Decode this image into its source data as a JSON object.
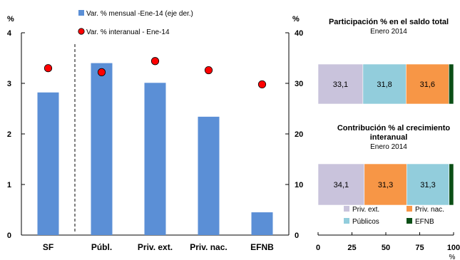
{
  "chart_data": [
    {
      "type": "bar",
      "categories": [
        "SF",
        "Públ.",
        "Priv. ext.",
        "Priv. nac.",
        "EFNB"
      ],
      "left_axis": {
        "unit": "%",
        "range": [
          0,
          4
        ],
        "ticks": [
          "0",
          "1",
          "2",
          "3",
          "4"
        ]
      },
      "right_axis": {
        "unit": "%",
        "range": [
          0,
          40
        ],
        "ticks": [
          "0",
          "10",
          "20",
          "30",
          "40"
        ]
      },
      "series": [
        {
          "name": "Var. % mensual -Ene-14 (eje der.)",
          "kind": "bar",
          "color": "#5b8fd6",
          "values": [
            2.82,
            3.4,
            3.01,
            2.34,
            0.45
          ]
        },
        {
          "name": "Var. % interanual - Ene-14",
          "kind": "marker",
          "color": "#ff0000",
          "values": [
            33.0,
            32.2,
            34.4,
            32.6,
            29.8
          ]
        }
      ],
      "separator_after_category": 0
    },
    {
      "type": "bar",
      "orientation": "horizontal-stacked",
      "title": "Participación % en el saldo total",
      "subtitle": "Enero 2014",
      "segments": [
        {
          "series": "Priv. ext.",
          "value": 33.1,
          "label": "33,1"
        },
        {
          "series": "Públicos",
          "value": 31.8,
          "label": "31,8"
        },
        {
          "series": "Priv. nac.",
          "value": 31.6,
          "label": "31,6"
        },
        {
          "series": "EFNB",
          "value": 3.5,
          "label": ""
        }
      ]
    },
    {
      "type": "bar",
      "orientation": "horizontal-stacked",
      "title": "Contribución % al crecimiento interanual",
      "title_lines": [
        "Contribución % al crecimiento",
        "interanual"
      ],
      "subtitle": "Enero 2014",
      "segments": [
        {
          "series": "Priv. ext.",
          "value": 34.1,
          "label": "34,1"
        },
        {
          "series": "Priv. nac.",
          "value": 31.3,
          "label": "31,3"
        },
        {
          "series": "Públicos",
          "value": 31.3,
          "label": "31,3"
        },
        {
          "series": "EFNB",
          "value": 3.3,
          "label": ""
        }
      ],
      "xaxis": {
        "unit": "%",
        "range": [
          0,
          100
        ],
        "ticks": [
          "0",
          "25",
          "50",
          "75",
          "100"
        ]
      },
      "legend": [
        {
          "name": "Priv. ext.",
          "color": "#c9c3dc"
        },
        {
          "name": "Priv. nac.",
          "color": "#f79646"
        },
        {
          "name": "Públicos",
          "color": "#92cddc"
        },
        {
          "name": "EFNB",
          "color": "#0b4f16"
        }
      ]
    }
  ]
}
